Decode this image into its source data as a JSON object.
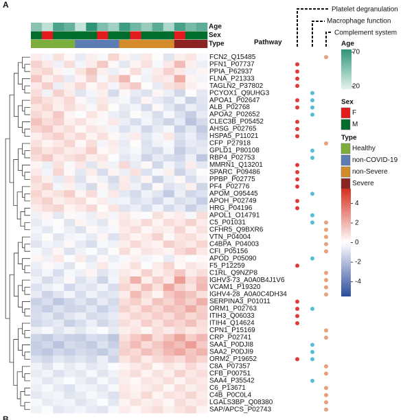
{
  "panel_label": "A",
  "next_panel_label": "B",
  "chart_data": {
    "type": "heatmap",
    "rows": [
      "FCN2_Q15485",
      "PFN1_P07737",
      "PPIA_P62937",
      "FLNA_P21333",
      "TAGLN2_P37802",
      "PCYOX1_Q9UHG3",
      "APOA1_P02647",
      "ALB_P02768",
      "APOA2_P02652",
      "CLEC3B_P05452",
      "AHSG_P02765",
      "HSPA5_P11021",
      "CFP_P27918",
      "GPLD1_P80108",
      "RBP4_P02753",
      "MMRN1_Q13201",
      "SPARC_P09486",
      "PPBP_P02775",
      "PF4_P02776",
      "APOM_O95445",
      "APOH_P02749",
      "HRG_P04196",
      "APOL1_O14791",
      "C5_P01031",
      "CFHR5_Q9BXR6",
      "VTN_P04004",
      "C4BPA_P04003",
      "CFI_P05156",
      "APOD_P05090",
      "F5_P12259",
      "C1RL_Q9NZP8",
      "IGHV3-73_A0A0B4J1V6",
      "VCAM1_P19320",
      "IGHV4-28_A0A0C4DH34",
      "SERPINA3_P01011",
      "ORM1_P02763",
      "ITIH3_Q06033",
      "ITIH4_Q14624",
      "CPN1_P15169",
      "CRP_P02741",
      "SAA1_P0DJI8",
      "SAA2_P0DJI9",
      "ORM2_P19652",
      "C8A_P07357",
      "CFB_P00751",
      "SAA4_P35542",
      "C6_P13671",
      "C4B_P0C0L4",
      "LGALS3BP_Q08380",
      "SAP/APCS_P02743"
    ],
    "matrix": [
      [
        0.5,
        -0.3,
        0.8,
        0.2,
        -0.6,
        0.4,
        -0.2,
        1.1,
        0.3,
        -0.5,
        0.6,
        0.1,
        -0.8,
        0.4,
        0.7,
        -0.2
      ],
      [
        1.2,
        0.6,
        -0.4,
        0.9,
        -0.3,
        0.5,
        1.4,
        0.2,
        -0.7,
        0.3,
        0.8,
        -0.2,
        0.6,
        1.8,
        0.4,
        -0.5
      ],
      [
        0.8,
        1.1,
        0.3,
        -0.2,
        0.7,
        1.6,
        0.4,
        -0.5,
        0.2,
        0.9,
        -0.3,
        0.5,
        1.2,
        0.6,
        -0.4,
        0.3
      ],
      [
        1.5,
        0.4,
        0.9,
        -0.6,
        0.3,
        1.2,
        -0.2,
        0.8,
        1.9,
        0.1,
        -0.4,
        0.7,
        0.5,
        2.2,
        0.3,
        -0.3
      ],
      [
        0.6,
        1.3,
        -0.5,
        0.4,
        1.0,
        0.2,
        0.7,
        -0.3,
        0.9,
        1.4,
        0.1,
        -0.6,
        0.8,
        1.1,
        0.4,
        0.2
      ],
      [
        0.9,
        -0.4,
        1.2,
        0.5,
        -0.8,
        -0.3,
        0.4,
        -1.1,
        0.2,
        -0.6,
        -0.9,
        0.3,
        -0.5,
        -1.2,
        0.1,
        -0.7
      ],
      [
        1.3,
        0.8,
        0.5,
        1.0,
        0.2,
        -0.5,
        0.6,
        -0.4,
        -0.2,
        -0.9,
        0.3,
        -0.6,
        -1.0,
        -0.3,
        -1.4,
        -0.8
      ],
      [
        0.7,
        1.1,
        0.4,
        0.9,
        0.5,
        -0.2,
        0.8,
        0.1,
        -0.6,
        -0.3,
        -1.1,
        0.2,
        -0.7,
        -1.3,
        -0.5,
        -0.9
      ],
      [
        1.0,
        0.6,
        1.4,
        0.3,
        -0.1,
        0.7,
        0.2,
        -0.5,
        -0.8,
        0.1,
        -0.4,
        -1.0,
        -0.2,
        -0.9,
        -1.5,
        -0.6
      ],
      [
        1.6,
        0.9,
        1.2,
        0.4,
        0.8,
        0.3,
        -0.2,
        0.6,
        -0.5,
        -1.0,
        -0.3,
        -0.8,
        -1.3,
        -0.6,
        -1.8,
        -1.1
      ],
      [
        1.1,
        1.4,
        0.6,
        0.9,
        0.2,
        0.7,
        0.4,
        -0.3,
        -0.9,
        -0.4,
        -1.2,
        -0.6,
        -0.2,
        -1.4,
        -0.7,
        -1.6
      ],
      [
        0.4,
        0.9,
        1.3,
        0.6,
        1.0,
        0.3,
        0.8,
        0.2,
        -0.4,
        0.5,
        -0.7,
        -0.3,
        0.6,
        -0.9,
        -0.5,
        -1.2
      ],
      [
        0.8,
        0.3,
        0.6,
        1.1,
        0.2,
        0.9,
        -0.3,
        0.5,
        -0.6,
        0.1,
        -0.9,
        -0.4,
        -0.2,
        -1.1,
        -0.6,
        -0.8
      ],
      [
        1.2,
        0.7,
        1.0,
        0.5,
        0.6,
        1.3,
        0.2,
        0.4,
        -0.5,
        -0.2,
        -0.8,
        -1.1,
        -0.3,
        -1.5,
        -0.9,
        -0.6
      ],
      [
        0.9,
        1.4,
        0.5,
        0.8,
        1.1,
        0.4,
        0.7,
        -0.1,
        -0.7,
        -0.4,
        -1.3,
        -0.6,
        -1.0,
        -1.2,
        -0.5,
        -1.7
      ],
      [
        0.3,
        -0.5,
        0.8,
        -0.2,
        0.6,
        -0.8,
        0.4,
        -0.4,
        1.0,
        -0.6,
        0.2,
        -1.2,
        -0.3,
        -0.9,
        0.5,
        -0.7
      ],
      [
        0.6,
        -0.3,
        1.1,
        0.2,
        -0.7,
        0.5,
        -1.0,
        0.3,
        -0.5,
        0.8,
        -0.9,
        -0.2,
        0.4,
        -1.3,
        -0.6,
        0.1
      ],
      [
        1.0,
        0.4,
        -0.6,
        0.7,
        -0.9,
        0.2,
        -0.4,
        -1.1,
        0.5,
        -0.7,
        0.3,
        -1.4,
        -0.5,
        0.2,
        -1.0,
        -0.3
      ],
      [
        0.7,
        1.2,
        -0.3,
        0.4,
        -0.5,
        -1.1,
        0.3,
        -0.8,
        0.6,
        -0.4,
        -1.2,
        0.2,
        -0.9,
        -0.6,
        0.4,
        -1.3
      ],
      [
        1.1,
        0.5,
        0.8,
        1.3,
        0.3,
        0.9,
        -0.2,
        0.6,
        -0.7,
        -1.1,
        -0.4,
        -0.8,
        -1.6,
        -0.5,
        -1.2,
        -0.9
      ],
      [
        0.8,
        1.2,
        0.4,
        0.7,
        0.9,
        0.2,
        0.5,
        -0.4,
        -0.3,
        -0.9,
        -0.6,
        -1.2,
        -0.4,
        -1.0,
        -0.7,
        -1.5
      ],
      [
        0.5,
        0.9,
        1.1,
        0.3,
        0.6,
        1.0,
        0.1,
        0.7,
        -0.8,
        -0.5,
        -1.0,
        -0.3,
        -1.1,
        -0.6,
        -1.4,
        -0.8
      ],
      [
        -0.4,
        0.3,
        -0.7,
        0.2,
        -0.2,
        -0.5,
        0.4,
        -0.3,
        0.6,
        0.2,
        -0.1,
        0.8,
        0.3,
        0.5,
        -0.2,
        0.9
      ],
      [
        -0.6,
        -0.2,
        0.1,
        -0.8,
        0.3,
        -0.4,
        -0.7,
        0.2,
        0.7,
        0.4,
        1.0,
        0.3,
        0.9,
        0.6,
        1.2,
        0.5
      ],
      [
        -0.3,
        -0.7,
        -0.1,
        -0.5,
        -0.9,
        0.2,
        -0.4,
        -0.2,
        0.5,
        0.9,
        0.2,
        0.6,
        0.4,
        1.1,
        0.3,
        0.8
      ],
      [
        -0.5,
        0.1,
        -0.8,
        -0.3,
        -0.2,
        -0.6,
        0.3,
        -0.9,
        0.8,
        0.3,
        0.6,
        1.2,
        0.2,
        0.7,
        0.9,
        0.4
      ],
      [
        -0.8,
        -0.3,
        -0.5,
        0.2,
        -0.6,
        -1.0,
        -0.2,
        -0.4,
        0.4,
        1.0,
        0.5,
        0.3,
        1.3,
        0.8,
        0.6,
        1.1
      ],
      [
        -0.2,
        -0.6,
        0.3,
        -0.9,
        -0.4,
        -0.1,
        -0.7,
        0.1,
        0.9,
        0.2,
        0.7,
        0.5,
        0.3,
        1.0,
        1.4,
        0.6
      ],
      [
        0.3,
        -0.4,
        0.6,
        -0.1,
        0.5,
        -0.7,
        0.2,
        -0.5,
        -0.2,
        0.4,
        -0.3,
        0.1,
        -0.6,
        0.3,
        -0.1,
        0.2
      ],
      [
        -0.5,
        0.2,
        -0.3,
        -0.8,
        0.1,
        -0.4,
        0.6,
        -0.2,
        0.3,
        0.8,
        -0.1,
        0.5,
        1.1,
        0.2,
        0.7,
        0.4
      ],
      [
        -0.7,
        -0.3,
        -1.0,
        -0.2,
        -0.5,
        0.3,
        -0.8,
        -0.4,
        0.6,
        0.3,
        1.2,
        0.4,
        0.8,
        1.5,
        0.5,
        0.9
      ],
      [
        -0.4,
        -1.1,
        -0.6,
        0.2,
        -0.9,
        -0.5,
        -1.3,
        -0.3,
        0.8,
        2.1,
        0.4,
        1.3,
        0.6,
        2.6,
        1.0,
        1.7
      ],
      [
        -0.9,
        -0.5,
        -0.2,
        -1.2,
        -0.6,
        -0.8,
        -0.3,
        -1.0,
        1.1,
        0.6,
        1.7,
        0.8,
        2.3,
        1.2,
        0.7,
        1.9
      ],
      [
        -0.6,
        -1.3,
        -0.8,
        -0.3,
        -1.0,
        -0.4,
        -0.9,
        -0.7,
        0.5,
        1.8,
        0.9,
        0.3,
        1.4,
        2.0,
        1.6,
        0.8
      ],
      [
        -1.4,
        -1.0,
        -1.7,
        -1.2,
        -0.8,
        -1.3,
        -0.6,
        -1.1,
        0.9,
        1.3,
        0.6,
        1.6,
        1.1,
        1.8,
        1.2,
        2.1
      ],
      [
        -1.1,
        -1.5,
        -0.9,
        -1.3,
        -1.2,
        -0.7,
        -1.4,
        -0.9,
        1.2,
        0.7,
        1.5,
        1.0,
        1.7,
        1.4,
        2.2,
        1.3
      ],
      [
        -1.0,
        -0.7,
        -1.3,
        -0.8,
        -0.5,
        -1.1,
        -0.9,
        -0.6,
        0.6,
        1.1,
        0.8,
        1.3,
        0.9,
        1.6,
        1.0,
        1.4
      ],
      [
        -1.2,
        -0.9,
        -0.6,
        -1.4,
        -1.0,
        -0.5,
        -1.2,
        -0.8,
        0.9,
        0.5,
        1.3,
        0.7,
        1.4,
        1.1,
        1.7,
        0.9
      ],
      [
        -0.5,
        -0.2,
        -0.8,
        -0.4,
        -0.7,
        -0.3,
        -0.1,
        -0.6,
        0.4,
        0.7,
        0.2,
        0.9,
        0.5,
        1.0,
        0.6,
        0.8
      ],
      [
        -1.3,
        -1.6,
        -1.1,
        -1.4,
        -1.5,
        -1.0,
        -1.2,
        -1.7,
        0.8,
        1.4,
        2.0,
        0.9,
        1.6,
        2.4,
        1.3,
        1.9
      ],
      [
        -1.5,
        -1.2,
        -1.8,
        -1.1,
        -1.3,
        -1.6,
        -0.9,
        -1.4,
        1.1,
        1.8,
        0.9,
        1.5,
        2.1,
        1.7,
        2.6,
        1.4
      ],
      [
        -1.4,
        -1.7,
        -1.2,
        -1.5,
        -1.1,
        -1.3,
        -1.6,
        -1.0,
        1.3,
        1.0,
        1.7,
        1.2,
        1.9,
        2.3,
        1.5,
        2.0
      ],
      [
        -0.9,
        -1.2,
        -0.7,
        -1.0,
        -0.8,
        -1.1,
        -0.5,
        -1.3,
        0.7,
        1.2,
        0.5,
        1.0,
        1.3,
        0.9,
        1.6,
        1.1
      ],
      [
        -0.4,
        -0.8,
        -0.2,
        -0.6,
        -0.3,
        -0.7,
        -0.5,
        -0.1,
        0.3,
        0.6,
        0.9,
        0.2,
        0.7,
        0.4,
        1.0,
        0.5
      ],
      [
        -0.6,
        -0.3,
        -0.9,
        -0.5,
        -0.7,
        -0.2,
        -0.8,
        -0.4,
        0.5,
        0.9,
        0.3,
        0.8,
        0.4,
        1.2,
        0.6,
        0.9
      ],
      [
        -0.3,
        -0.7,
        -0.4,
        -0.1,
        -0.5,
        -0.8,
        -0.2,
        -0.6,
        0.4,
        0.2,
        0.7,
        0.5,
        0.9,
        0.3,
        0.8,
        0.6
      ],
      [
        -0.5,
        -0.2,
        -0.6,
        -0.9,
        -0.3,
        -0.4,
        -0.7,
        -0.2,
        0.6,
        0.3,
        0.5,
        0.8,
        0.2,
        0.9,
        0.4,
        0.7
      ],
      [
        -0.7,
        -0.4,
        -0.3,
        -0.8,
        -0.6,
        -0.2,
        -0.5,
        -0.9,
        0.7,
        0.4,
        1.0,
        0.3,
        0.8,
        0.6,
        1.1,
        0.5
      ],
      [
        -0.2,
        -0.6,
        -0.4,
        -0.3,
        -0.8,
        -0.5,
        -0.1,
        -0.7,
        0.3,
        0.8,
        0.4,
        0.6,
        0.2,
        0.9,
        0.5,
        0.7
      ],
      [
        -0.4,
        -0.1,
        -0.7,
        -0.5,
        -0.3,
        -0.6,
        -0.8,
        -0.2,
        0.5,
        0.2,
        0.6,
        0.9,
        0.4,
        0.7,
        1.0,
        0.3
      ]
    ],
    "clim": [
      -5.5,
      5.5
    ],
    "cticks": [
      4,
      2,
      0,
      -2,
      -4
    ],
    "cmap": [
      "#2b4c9b",
      "#ffffff",
      "#d7301f"
    ],
    "tracks": [
      {
        "name": "Age",
        "values": [
          45,
          30,
          62,
          55,
          28,
          70,
          48,
          38,
          66,
          52,
          41,
          58,
          35,
          63,
          50,
          57
        ],
        "lim": [
          20,
          70
        ],
        "ticks": [
          70,
          20
        ],
        "colors": [
          "#e4f3ee",
          "#2e9478"
        ]
      },
      {
        "name": "Sex",
        "values": [
          "M",
          "F",
          "M",
          "M",
          "M",
          "M",
          "F",
          "M",
          "M",
          "F",
          "M",
          "M",
          "M",
          "F",
          "M",
          "M"
        ],
        "levels": [
          "F",
          "M"
        ],
        "colors": [
          "#e31a1c",
          "#006d2c"
        ]
      },
      {
        "name": "Type",
        "values": [
          "Healthy",
          "Healthy",
          "Healthy",
          "Healthy",
          "non-COVID-19",
          "non-COVID-19",
          "non-COVID-19",
          "non-COVID-19",
          "non-Severe",
          "non-Severe",
          "non-Severe",
          "non-Severe",
          "non-Severe",
          "Severe",
          "Severe",
          "Severe"
        ],
        "levels": [
          "Healthy",
          "non-COVID-19",
          "non-Severe",
          "Severe"
        ],
        "colors": [
          "#7cae3c",
          "#5b7db3",
          "#d48b2a",
          "#8b2323"
        ]
      }
    ],
    "pathway_title": "Pathway",
    "pathways": [
      {
        "name": "Platelet degranulation",
        "color": "#e03a3a"
      },
      {
        "name": "Macrophage function",
        "color": "#5bbcd6"
      },
      {
        "name": "Complement system",
        "color": "#e8a07a"
      }
    ],
    "membership": [
      [
        2
      ],
      [
        0
      ],
      [
        0
      ],
      [
        0
      ],
      [
        0
      ],
      [
        1
      ],
      [
        0,
        1
      ],
      [
        0,
        1
      ],
      [
        1
      ],
      [
        0
      ],
      [
        0
      ],
      [
        0
      ],
      [
        2
      ],
      [
        1
      ],
      [
        1
      ],
      [
        0
      ],
      [
        0
      ],
      [
        0
      ],
      [
        0
      ],
      [
        1
      ],
      [
        0
      ],
      [
        0
      ],
      [
        1
      ],
      [
        1,
        2
      ],
      [
        2
      ],
      [
        2
      ],
      [
        2
      ],
      [
        2
      ],
      [
        1
      ],
      [
        0
      ],
      [
        2
      ],
      [
        2
      ],
      [
        2
      ],
      [
        2
      ],
      [
        0
      ],
      [
        0,
        1
      ],
      [
        0
      ],
      [
        0
      ],
      [
        2
      ],
      [
        2
      ],
      [
        1
      ],
      [
        1
      ],
      [
        0,
        1
      ],
      [
        2
      ],
      [
        2
      ],
      [
        1
      ],
      [
        2
      ],
      [
        2
      ],
      [
        2
      ],
      [
        2
      ]
    ]
  }
}
